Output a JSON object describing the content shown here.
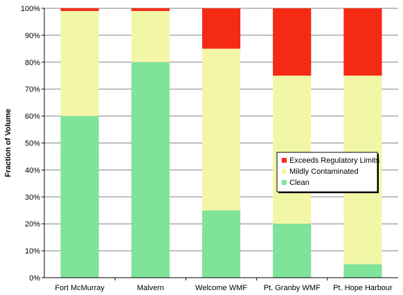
{
  "chart_data": {
    "type": "bar",
    "stacked": true,
    "percent": true,
    "title": "",
    "xlabel": "",
    "ylabel": "Fraction of Volume",
    "ylim": [
      0,
      100
    ],
    "yticks": [
      "0%",
      "10%",
      "20%",
      "30%",
      "40%",
      "50%",
      "60%",
      "70%",
      "80%",
      "90%",
      "100%"
    ],
    "categories": [
      "Fort McMurray",
      "Malvern",
      "Welcome WMF",
      "Pt. Granby WMF",
      "Pt. Hope Harbour"
    ],
    "series": [
      {
        "name": "Clean",
        "values": [
          60,
          80,
          25,
          20,
          5
        ],
        "color": "#7fe39a"
      },
      {
        "name": "Mildly Contaminated",
        "values": [
          39,
          19,
          60,
          55,
          70
        ],
        "color": "#f2f7a8"
      },
      {
        "name": "Exceeds Regulatory Limits",
        "values": [
          1,
          1,
          15,
          25,
          25
        ],
        "color": "#f52a14"
      }
    ],
    "legend_position": "right",
    "legend_order": [
      "Exceeds Regulatory Limits",
      "Mildly Contaminated",
      "Clean"
    ],
    "grid": true,
    "plot_background": "#ffffff",
    "gridline_color": "#808080",
    "axis_color": "#000000"
  }
}
